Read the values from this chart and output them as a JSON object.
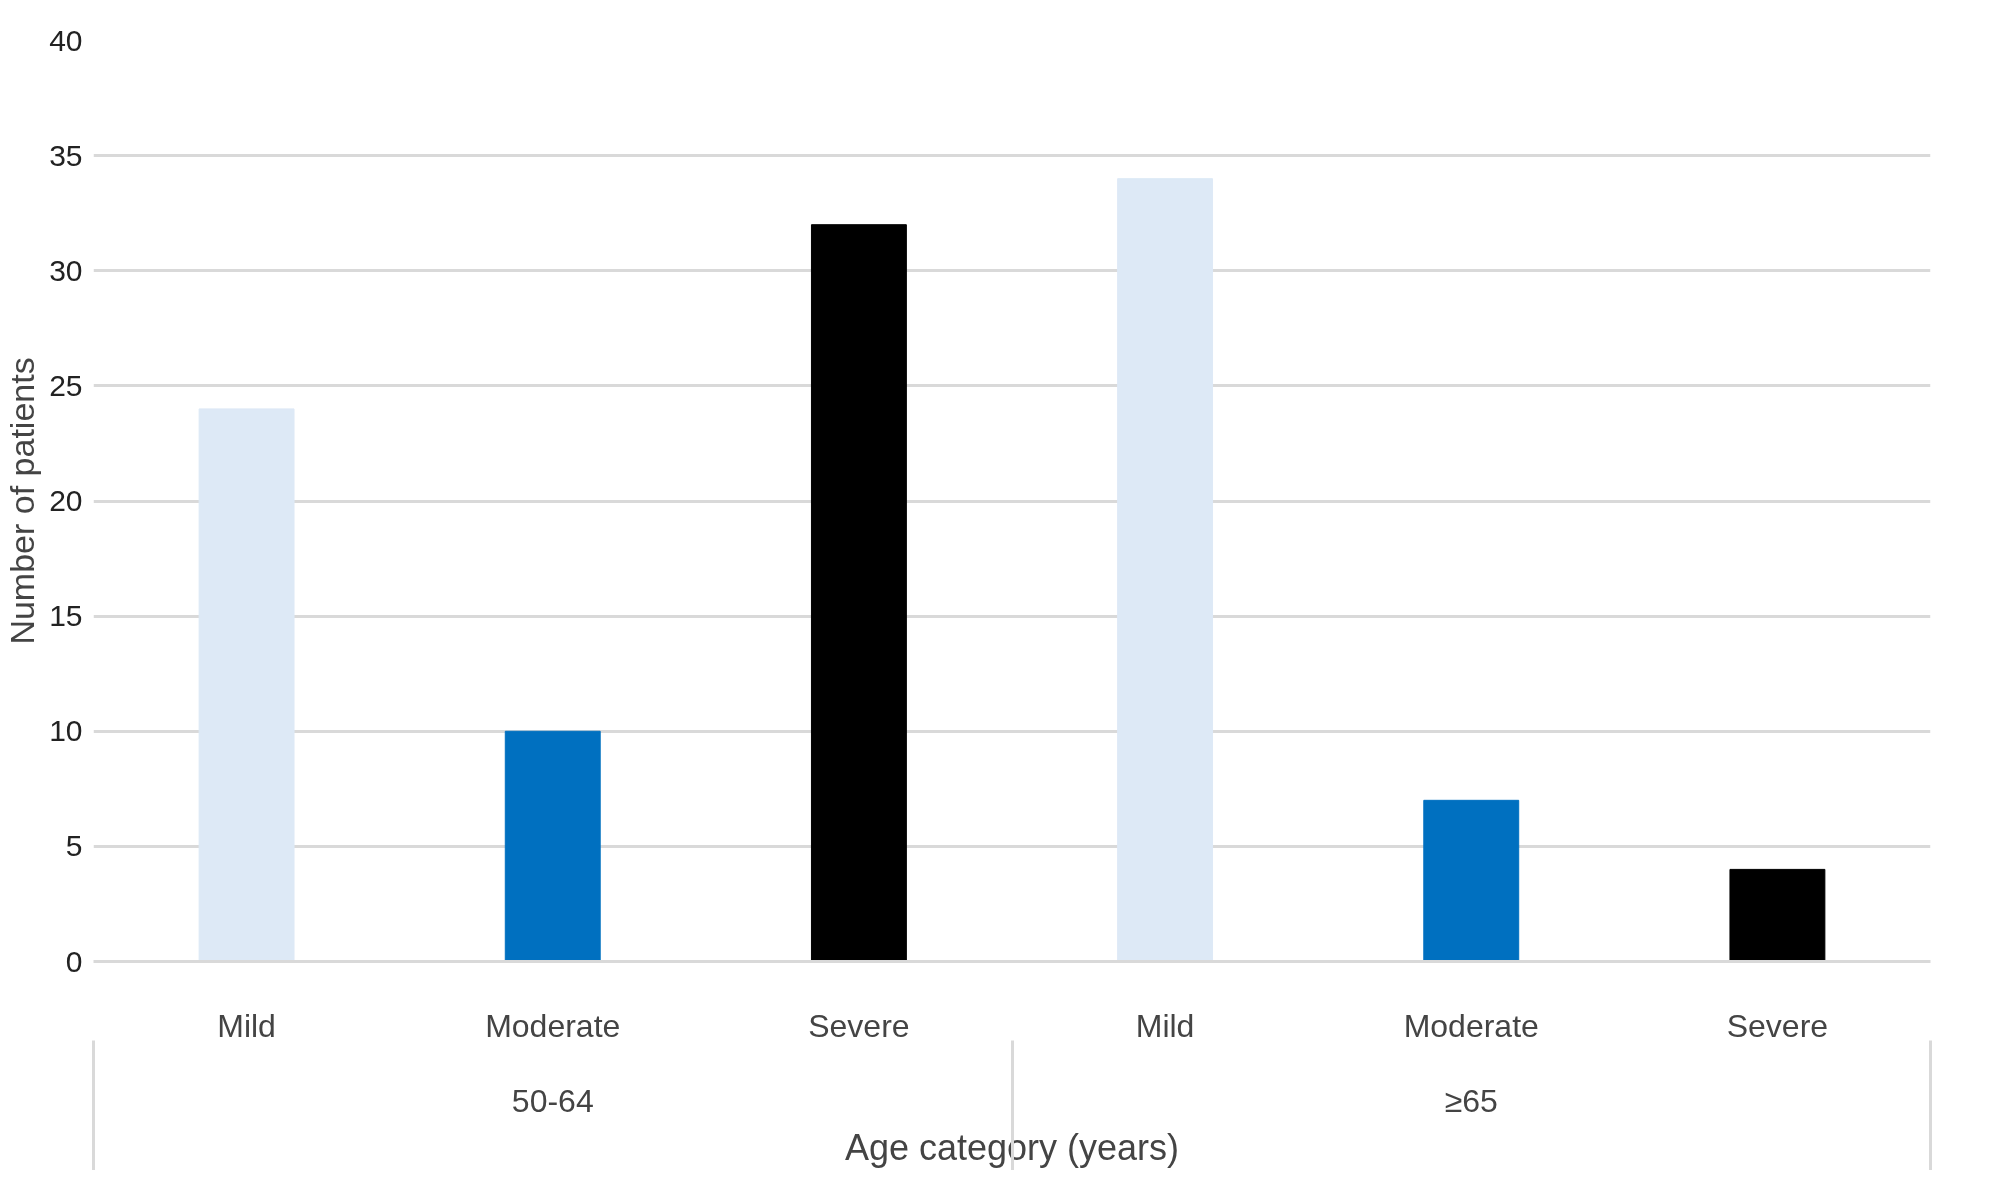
{
  "chart_data": {
    "type": "bar",
    "xlabel": "Age category (years)",
    "ylabel": "Number of patients",
    "categories": [
      "Mild",
      "Moderate",
      "Severe",
      "Mild",
      "Moderate",
      "Severe"
    ],
    "values": [
      24,
      10,
      32,
      34,
      7,
      4
    ],
    "colors": [
      "#dde9f6",
      "#0070c0",
      "#000000",
      "#dde9f6",
      "#0070c0",
      "#000000"
    ],
    "annotations": [
      "50-64",
      "≥65"
    ],
    "ylim": [
      0,
      40
    ],
    "yticks": [
      0,
      5,
      10,
      15,
      20,
      25,
      30,
      35,
      40
    ],
    "grid": "y"
  }
}
